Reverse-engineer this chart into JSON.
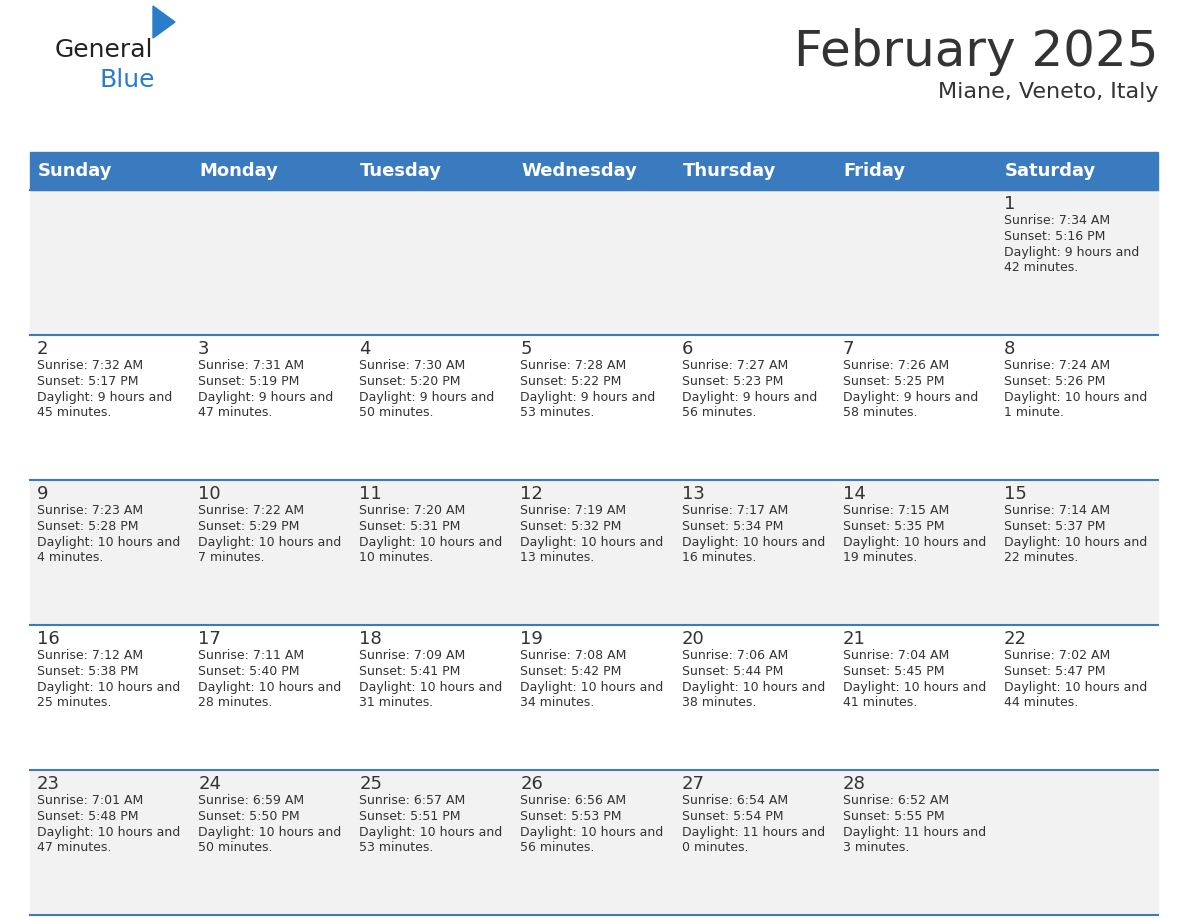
{
  "title": "February 2025",
  "subtitle": "Miane, Veneto, Italy",
  "header_bg": "#3a7abf",
  "header_text_color": "#ffffff",
  "weekdays": [
    "Sunday",
    "Monday",
    "Tuesday",
    "Wednesday",
    "Thursday",
    "Friday",
    "Saturday"
  ],
  "row_bg_odd": "#f2f2f2",
  "row_bg_even": "#ffffff",
  "separator_color": "#3a7abf",
  "text_color": "#333333",
  "day_num_color": "#333333",
  "logo_general_color": "#222222",
  "logo_blue_color": "#2a7dc9",
  "cells": [
    [
      null,
      null,
      null,
      null,
      null,
      null,
      {
        "day": 1,
        "sunrise": "7:34 AM",
        "sunset": "5:16 PM",
        "daylight": "9 hours and 42 minutes."
      }
    ],
    [
      {
        "day": 2,
        "sunrise": "7:32 AM",
        "sunset": "5:17 PM",
        "daylight": "9 hours and 45 minutes."
      },
      {
        "day": 3,
        "sunrise": "7:31 AM",
        "sunset": "5:19 PM",
        "daylight": "9 hours and 47 minutes."
      },
      {
        "day": 4,
        "sunrise": "7:30 AM",
        "sunset": "5:20 PM",
        "daylight": "9 hours and 50 minutes."
      },
      {
        "day": 5,
        "sunrise": "7:28 AM",
        "sunset": "5:22 PM",
        "daylight": "9 hours and 53 minutes."
      },
      {
        "day": 6,
        "sunrise": "7:27 AM",
        "sunset": "5:23 PM",
        "daylight": "9 hours and 56 minutes."
      },
      {
        "day": 7,
        "sunrise": "7:26 AM",
        "sunset": "5:25 PM",
        "daylight": "9 hours and 58 minutes."
      },
      {
        "day": 8,
        "sunrise": "7:24 AM",
        "sunset": "5:26 PM",
        "daylight": "10 hours and 1 minute."
      }
    ],
    [
      {
        "day": 9,
        "sunrise": "7:23 AM",
        "sunset": "5:28 PM",
        "daylight": "10 hours and 4 minutes."
      },
      {
        "day": 10,
        "sunrise": "7:22 AM",
        "sunset": "5:29 PM",
        "daylight": "10 hours and 7 minutes."
      },
      {
        "day": 11,
        "sunrise": "7:20 AM",
        "sunset": "5:31 PM",
        "daylight": "10 hours and 10 minutes."
      },
      {
        "day": 12,
        "sunrise": "7:19 AM",
        "sunset": "5:32 PM",
        "daylight": "10 hours and 13 minutes."
      },
      {
        "day": 13,
        "sunrise": "7:17 AM",
        "sunset": "5:34 PM",
        "daylight": "10 hours and 16 minutes."
      },
      {
        "day": 14,
        "sunrise": "7:15 AM",
        "sunset": "5:35 PM",
        "daylight": "10 hours and 19 minutes."
      },
      {
        "day": 15,
        "sunrise": "7:14 AM",
        "sunset": "5:37 PM",
        "daylight": "10 hours and 22 minutes."
      }
    ],
    [
      {
        "day": 16,
        "sunrise": "7:12 AM",
        "sunset": "5:38 PM",
        "daylight": "10 hours and 25 minutes."
      },
      {
        "day": 17,
        "sunrise": "7:11 AM",
        "sunset": "5:40 PM",
        "daylight": "10 hours and 28 minutes."
      },
      {
        "day": 18,
        "sunrise": "7:09 AM",
        "sunset": "5:41 PM",
        "daylight": "10 hours and 31 minutes."
      },
      {
        "day": 19,
        "sunrise": "7:08 AM",
        "sunset": "5:42 PM",
        "daylight": "10 hours and 34 minutes."
      },
      {
        "day": 20,
        "sunrise": "7:06 AM",
        "sunset": "5:44 PM",
        "daylight": "10 hours and 38 minutes."
      },
      {
        "day": 21,
        "sunrise": "7:04 AM",
        "sunset": "5:45 PM",
        "daylight": "10 hours and 41 minutes."
      },
      {
        "day": 22,
        "sunrise": "7:02 AM",
        "sunset": "5:47 PM",
        "daylight": "10 hours and 44 minutes."
      }
    ],
    [
      {
        "day": 23,
        "sunrise": "7:01 AM",
        "sunset": "5:48 PM",
        "daylight": "10 hours and 47 minutes."
      },
      {
        "day": 24,
        "sunrise": "6:59 AM",
        "sunset": "5:50 PM",
        "daylight": "10 hours and 50 minutes."
      },
      {
        "day": 25,
        "sunrise": "6:57 AM",
        "sunset": "5:51 PM",
        "daylight": "10 hours and 53 minutes."
      },
      {
        "day": 26,
        "sunrise": "6:56 AM",
        "sunset": "5:53 PM",
        "daylight": "10 hours and 56 minutes."
      },
      {
        "day": 27,
        "sunrise": "6:54 AM",
        "sunset": "5:54 PM",
        "daylight": "11 hours and 0 minutes."
      },
      {
        "day": 28,
        "sunrise": "6:52 AM",
        "sunset": "5:55 PM",
        "daylight": "11 hours and 3 minutes."
      },
      null
    ]
  ]
}
